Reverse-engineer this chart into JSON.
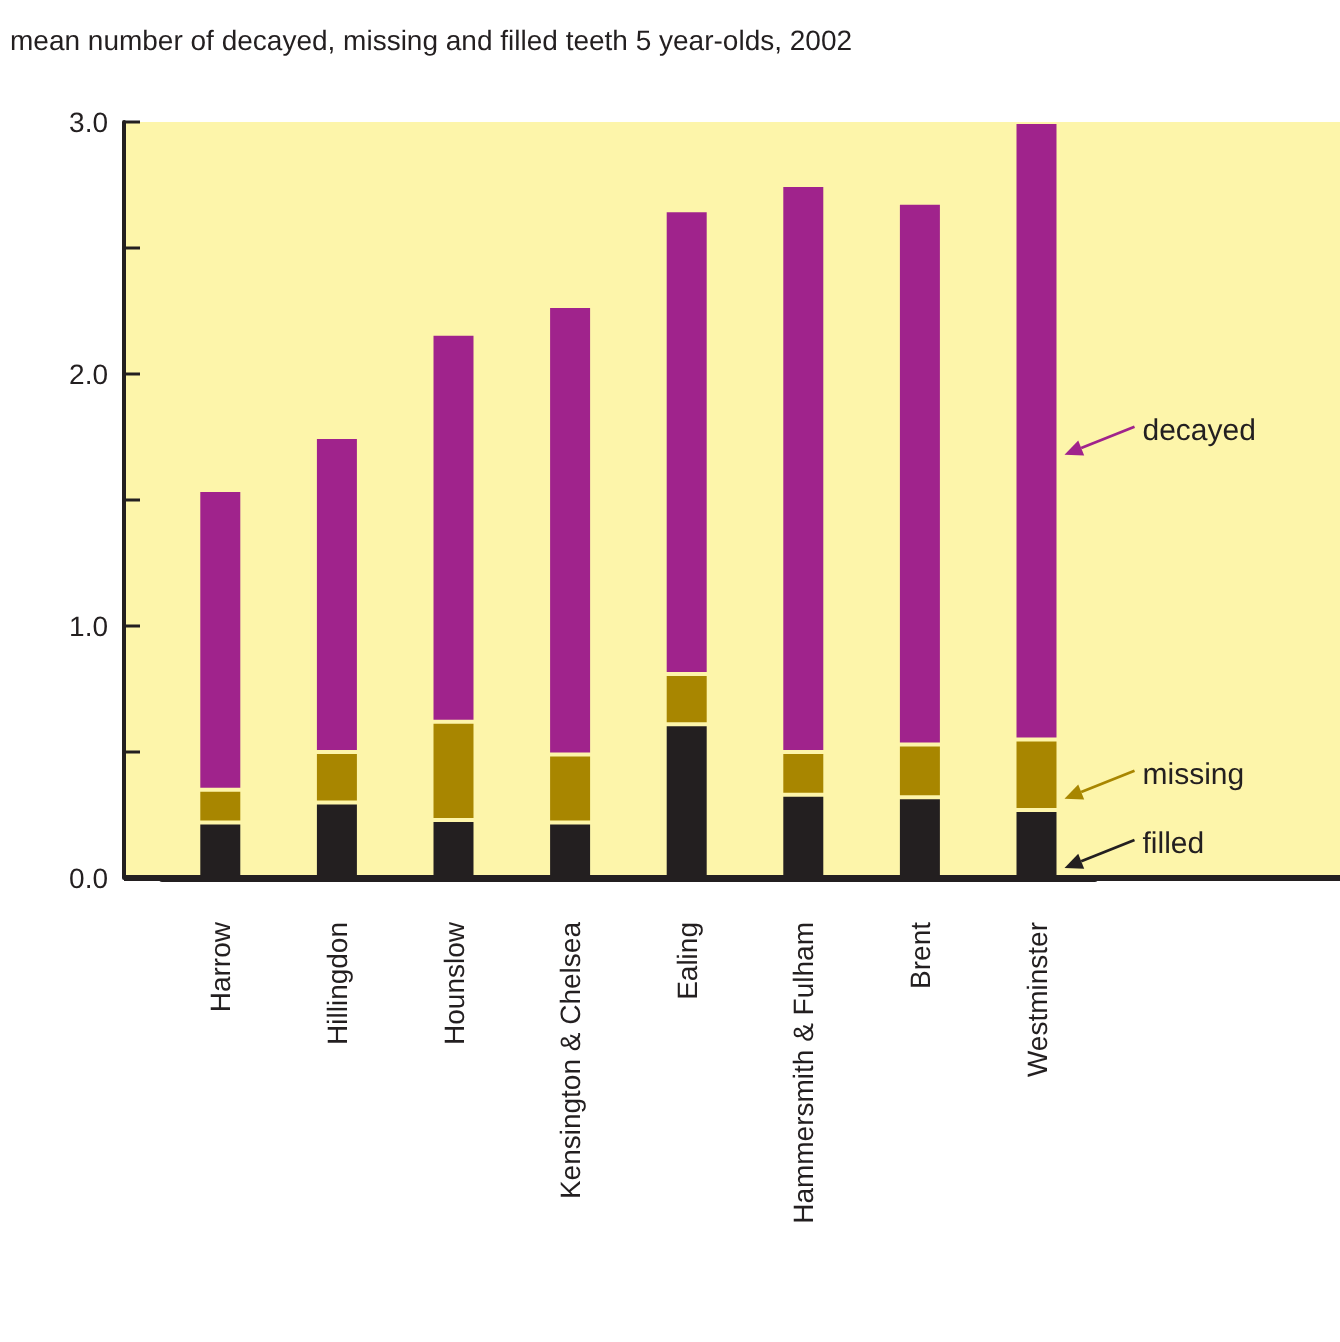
{
  "chart_data": {
    "type": "bar",
    "title": "mean number of decayed, missing and filled teeth 5 year-olds, 2002",
    "categories": [
      "Harrow",
      "Hillingdon",
      "Hounslow",
      "Kensington & Chelsea",
      "Ealing",
      "Hammersmith & Fulham",
      "Brent",
      "Westminster"
    ],
    "stacked": true,
    "series": [
      {
        "name": "filled",
        "color": "#231f20",
        "values": [
          0.22,
          0.3,
          0.23,
          0.22,
          0.61,
          0.33,
          0.32,
          0.27
        ]
      },
      {
        "name": "missing",
        "color": "#a88600",
        "values": [
          0.13,
          0.2,
          0.39,
          0.27,
          0.2,
          0.17,
          0.21,
          0.28
        ]
      },
      {
        "name": "decayed",
        "color": "#a0238c",
        "values": [
          1.19,
          1.25,
          1.54,
          1.78,
          1.84,
          2.25,
          2.15,
          2.45
        ]
      }
    ],
    "ylim": [
      0,
      3
    ],
    "yticks": [
      {
        "value": 0,
        "label": "0.0"
      },
      {
        "value": 0.5,
        "label": null
      },
      {
        "value": 1,
        "label": "1.0"
      },
      {
        "value": 1.5,
        "label": null
      },
      {
        "value": 2,
        "label": "2.0"
      },
      {
        "value": 2.5,
        "label": null
      },
      {
        "value": 3,
        "label": "3.0"
      }
    ],
    "grid": false,
    "legend": "right"
  }
}
